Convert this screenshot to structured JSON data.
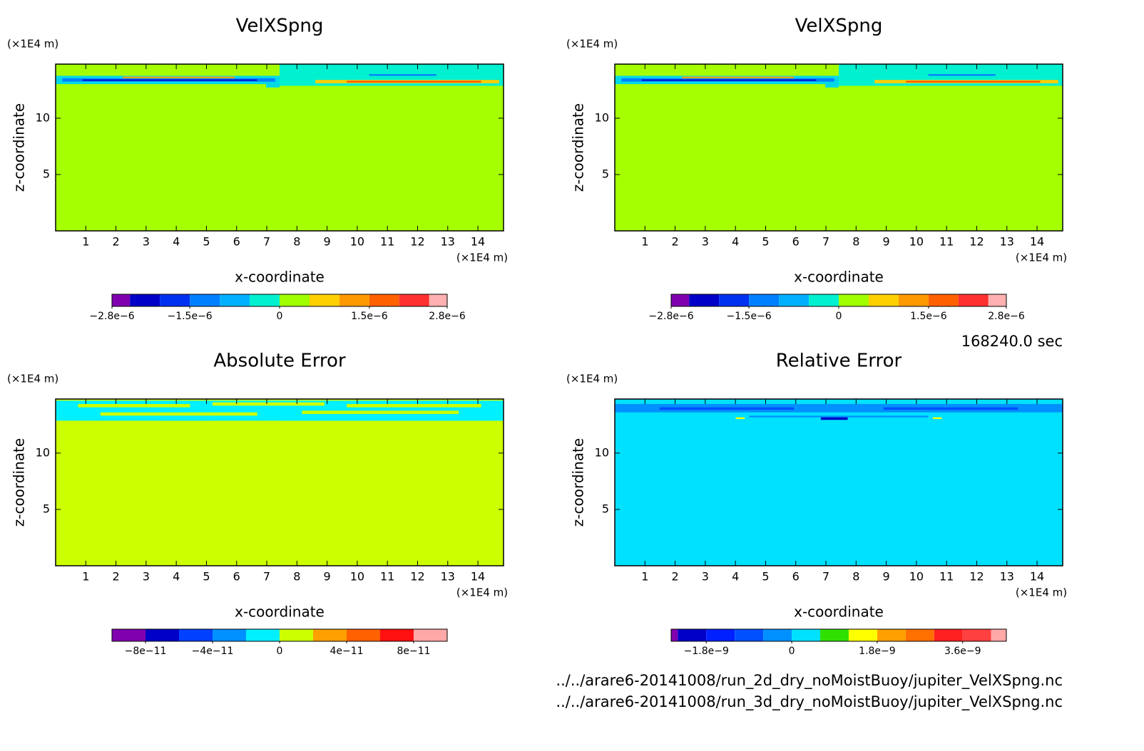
{
  "chart_data": [
    {
      "type": "contour",
      "title": "VelXSpng",
      "x_label": "x-coordinate",
      "y_label": "z-coordinate",
      "x_unit": "(×1E4 m)",
      "y_unit": "(×1E4 m)",
      "xlim": [
        0,
        14.85
      ],
      "ylim": [
        0,
        14.8
      ],
      "xticks": [
        1,
        2,
        3,
        4,
        5,
        6,
        7,
        8,
        9,
        10,
        11,
        12,
        13,
        14
      ],
      "yticks": [
        5,
        10
      ],
      "levels": [
        -2.8e-06,
        -2.5e-06,
        -2e-06,
        -1.5e-06,
        -1e-06,
        -5e-07,
        0,
        5e-07,
        1e-06,
        1.5e-06,
        2e-06,
        2.5e-06,
        2.8e-06
      ],
      "colors": [
        "#8000b0",
        "#0000c8",
        "#0030f0",
        "#0080ff",
        "#00b0ff",
        "#00f0d0",
        "#a0ff00",
        "#ffd000",
        "#ff9900",
        "#ff6000",
        "#ff3030",
        "#ffb0b0"
      ],
      "colorbar_ticks": [
        {
          "value": -2.8e-06,
          "label": "−2.8e−6"
        },
        {
          "value": -1.5e-06,
          "label": "−1.5e−6"
        },
        0,
        {
          "value": 1.5e-06,
          "label": "1.5e−6"
        },
        {
          "value": 2.8e-06,
          "label": "2.8e−6"
        }
      ]
    },
    {
      "type": "contour",
      "title": "VelXSpng",
      "x_label": "x-coordinate",
      "y_label": "z-coordinate",
      "x_unit": "(×1E4 m)",
      "y_unit": "(×1E4 m)",
      "xlim": [
        0,
        14.85
      ],
      "ylim": [
        0,
        14.8
      ],
      "xticks": [
        1,
        2,
        3,
        4,
        5,
        6,
        7,
        8,
        9,
        10,
        11,
        12,
        13,
        14
      ],
      "yticks": [
        5,
        10
      ],
      "levels": [
        -2.8e-06,
        -2.5e-06,
        -2e-06,
        -1.5e-06,
        -1e-06,
        -5e-07,
        0,
        5e-07,
        1e-06,
        1.5e-06,
        2e-06,
        2.5e-06,
        2.8e-06
      ],
      "colors": [
        "#8000b0",
        "#0000c8",
        "#0030f0",
        "#0080ff",
        "#00b0ff",
        "#00f0d0",
        "#a0ff00",
        "#ffd000",
        "#ff9900",
        "#ff6000",
        "#ff3030",
        "#ffb0b0"
      ],
      "colorbar_ticks": [
        {
          "value": -2.8e-06,
          "label": "−2.8e−6"
        },
        {
          "value": -1.5e-06,
          "label": "−1.5e−6"
        },
        0,
        {
          "value": 1.5e-06,
          "label": "1.5e−6"
        },
        {
          "value": 2.8e-06,
          "label": "2.8e−6"
        }
      ]
    },
    {
      "type": "contour",
      "title": "Absolute Error",
      "x_label": "x-coordinate",
      "y_label": "z-coordinate",
      "x_unit": "(×1E4 m)",
      "y_unit": "(×1E4 m)",
      "xlim": [
        0,
        14.85
      ],
      "ylim": [
        0,
        14.8
      ],
      "xticks": [
        1,
        2,
        3,
        4,
        5,
        6,
        7,
        8,
        9,
        10,
        11,
        12,
        13,
        14
      ],
      "yticks": [
        5,
        10
      ],
      "levels": [
        -1e-10,
        -8e-11,
        -6e-11,
        -4e-11,
        -2e-11,
        0,
        2e-11,
        4e-11,
        6e-11,
        8e-11,
        1e-10
      ],
      "colors": [
        "#8000b0",
        "#0000c8",
        "#0040ff",
        "#0090ff",
        "#00f0ff",
        "#ccff00",
        "#ffa000",
        "#ff6000",
        "#ff1010",
        "#ffa8a8"
      ],
      "colorbar_ticks": [
        {
          "value": -8e-11,
          "label": "−8e−11"
        },
        {
          "value": -4e-11,
          "label": "−4e−11"
        },
        0,
        {
          "value": 4e-11,
          "label": "4e−11"
        },
        {
          "value": 8e-11,
          "label": "8e−11"
        }
      ]
    },
    {
      "type": "contour",
      "title": "Relative Error",
      "x_label": "x-coordinate",
      "y_label": "z-coordinate",
      "x_unit": "(×1E4 m)",
      "y_unit": "(×1E4 m)",
      "xlim": [
        0,
        14.85
      ],
      "ylim": [
        0,
        14.8
      ],
      "xticks": [
        1,
        2,
        3,
        4,
        5,
        6,
        7,
        8,
        9,
        10,
        11,
        12,
        13,
        14
      ],
      "yticks": [
        5,
        10
      ],
      "levels": [
        -2.54e-09,
        -2.4e-09,
        -1.8e-09,
        -1.2e-09,
        -6e-10,
        0,
        6e-10,
        1.2e-09,
        1.8e-09,
        2.4e-09,
        3e-09,
        3.6e-09,
        4.2e-09,
        4.52e-09
      ],
      "colors": [
        "#8000b0",
        "#0000c8",
        "#0020ff",
        "#0050ff",
        "#0090ff",
        "#00e0ff",
        "#30e000",
        "#ffff00",
        "#ffa000",
        "#ff7000",
        "#ff2020",
        "#ff4040",
        "#ffa8a8"
      ],
      "colorbar_ticks": [
        {
          "value": -1.8e-09,
          "label": "−1.8e−9"
        },
        0,
        {
          "value": 1.8e-09,
          "label": "1.8e−9"
        },
        {
          "value": 3.6e-09,
          "label": "3.6e−9"
        }
      ]
    }
  ],
  "footer": {
    "time": "168240.0 sec",
    "files": [
      "../../arare6-20141008/run_2d_dry_noMoistBuoy/jupiter_VelXSpng.nc",
      "../../arare6-20141008/run_3d_dry_noMoistBuoy/jupiter_VelXSpng.nc"
    ]
  }
}
